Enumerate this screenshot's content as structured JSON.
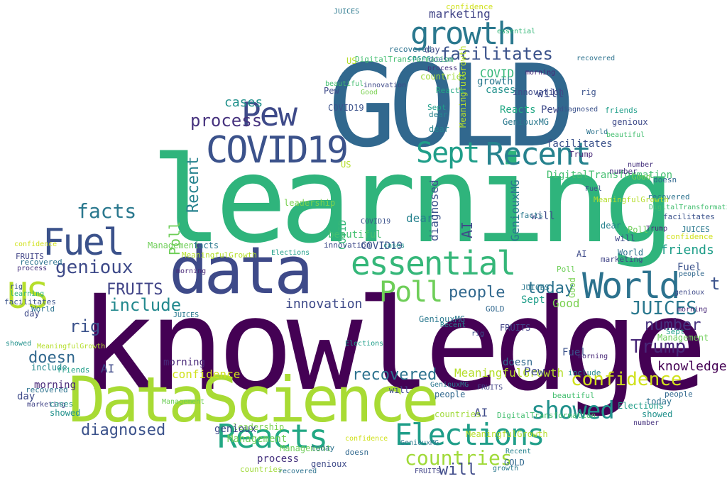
{
  "palette": [
    "#440154",
    "#3b528b",
    "#2a788e",
    "#21918c",
    "#22a884",
    "#44bf70",
    "#7ad151",
    "#bddf26",
    "#fde725"
  ],
  "words": [
    {
      "text": "knowledge",
      "c": "#440154"
    },
    {
      "text": "learning",
      "c": "#2fb47c"
    },
    {
      "text": "GOLD",
      "c": "#31688e"
    },
    {
      "text": "DataScience",
      "c": "#a8db34"
    },
    {
      "text": "data",
      "c": "#3e4a89"
    },
    {
      "text": "growth",
      "c": "#2a788e"
    },
    {
      "text": "COVID19",
      "c": "#3b528b"
    },
    {
      "text": "Pew",
      "c": "#3e4a89"
    },
    {
      "text": "Sept",
      "c": "#1f9e89"
    },
    {
      "text": "Recent",
      "c": "#26828e"
    },
    {
      "text": "essential",
      "c": "#35b779"
    },
    {
      "text": "World",
      "c": "#2c728e"
    },
    {
      "text": "Fuel",
      "c": "#3b528b"
    },
    {
      "text": "US",
      "c": "#b5de2b"
    },
    {
      "text": "Poll",
      "c": "#6ece58"
    },
    {
      "text": "Reacts",
      "c": "#22a884"
    },
    {
      "text": "Elections",
      "c": "#1f9e89"
    },
    {
      "text": "countries",
      "c": "#a0da39"
    },
    {
      "text": "showed",
      "c": "#21918c"
    },
    {
      "text": "confidence",
      "c": "#d0e11c"
    },
    {
      "text": "facilitates",
      "c": "#3b528b"
    },
    {
      "text": "process",
      "c": "#46327e"
    },
    {
      "text": "facts",
      "c": "#2a788e"
    },
    {
      "text": "genioux",
      "c": "#3e4a89"
    },
    {
      "text": "FRUITS",
      "c": "#414487"
    },
    {
      "text": "include",
      "c": "#23898e"
    },
    {
      "text": "rig",
      "c": "#3b528b"
    },
    {
      "text": "people",
      "c": "#31688e"
    },
    {
      "text": "today",
      "c": "#2c728e"
    },
    {
      "text": "JUICES",
      "c": "#2a788e"
    },
    {
      "text": "Trump",
      "c": "#482878"
    },
    {
      "text": "number",
      "c": "#46327e"
    },
    {
      "text": "knowledge",
      "c": "#440154"
    },
    {
      "text": "recovered",
      "c": "#2c728e"
    },
    {
      "text": "diagnosed",
      "c": "#3b528b"
    },
    {
      "text": "will",
      "c": "#3e4a89"
    },
    {
      "text": "doesn",
      "c": "#31688e"
    },
    {
      "text": "MeaningfulGrowth",
      "c": "#b5de2b"
    },
    {
      "text": "innovation",
      "c": "#3e4a89"
    },
    {
      "text": "Management",
      "c": "#6ece58"
    },
    {
      "text": "cases",
      "c": "#21918c"
    },
    {
      "text": "marketing",
      "c": "#414487"
    },
    {
      "text": "Good",
      "c": "#7ad151"
    },
    {
      "text": "dear",
      "c": "#26828e"
    },
    {
      "text": "AI",
      "c": "#3e4a89"
    },
    {
      "text": "morning",
      "c": "#482878"
    },
    {
      "text": "friends",
      "c": "#1f9e89"
    },
    {
      "text": "leadership",
      "c": "#7ad151"
    },
    {
      "text": "DigitalTransformation",
      "c": "#44bf70"
    },
    {
      "text": "GeniouxMG",
      "c": "#2a788e"
    },
    {
      "text": "beautiful",
      "c": "#44bf70"
    },
    {
      "text": "COVID",
      "c": "#35b779"
    },
    {
      "text": "day",
      "c": "#3e4a89"
    },
    {
      "text": "t",
      "c": "#3b528b"
    }
  ]
}
